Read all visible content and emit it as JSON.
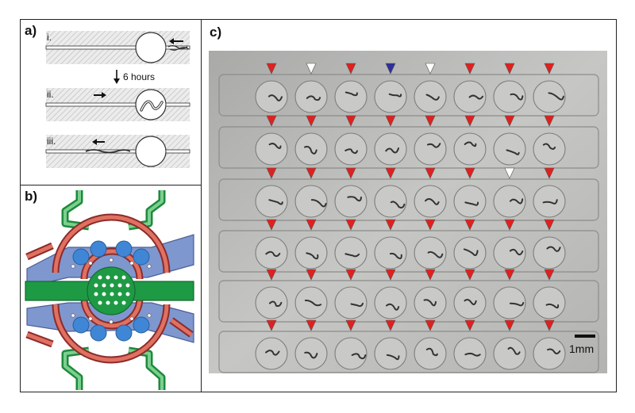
{
  "panel_a": {
    "label": "a)",
    "steps": [
      "i.",
      "ii.",
      "iii."
    ],
    "arrow_text": "6 hours"
  },
  "panel_b": {
    "label": "b)"
  },
  "panel_c": {
    "label": "c)",
    "scale_bar": "1mm",
    "colors": {
      "red": "#e0201f",
      "white": "#ffffff",
      "blue": "#2f2f9c"
    },
    "marker_rows": [
      [
        "red",
        "white",
        "red",
        "blue",
        "white",
        "red",
        "red",
        "red"
      ],
      [
        "red",
        "red",
        "red",
        "red",
        "red",
        "red",
        "red",
        "red"
      ],
      [
        "red",
        "red",
        "red",
        "red",
        "red",
        "red",
        "white",
        "red"
      ],
      [
        "red",
        "red",
        "red",
        "red",
        "red",
        "red",
        "red",
        "red"
      ],
      [
        "red",
        "red",
        "red",
        "red",
        "red",
        "red",
        "red",
        "red"
      ],
      [
        "red",
        "red",
        "red",
        "red",
        "red",
        "red",
        "red",
        "red"
      ]
    ]
  }
}
